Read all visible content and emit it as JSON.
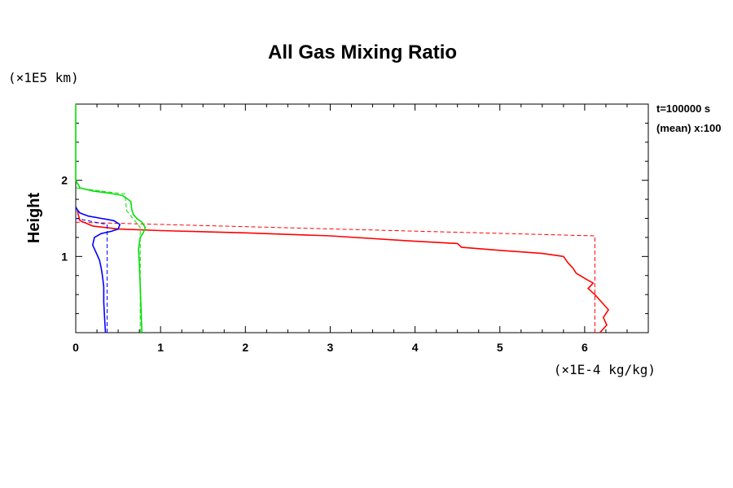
{
  "chart_data": {
    "type": "line",
    "title": "All Gas Mixing Ratio",
    "ylabel": "Height",
    "y_unit": "(×1E5 km)",
    "x_unit": "(×1E-4 kg/kg)",
    "annotations": [
      "t=100000 s",
      "(mean) x:100"
    ],
    "xlim": [
      0,
      6.75
    ],
    "ylim": [
      0,
      3.0
    ],
    "x_ticks": [
      "0",
      "1",
      "2",
      "3",
      "4",
      "5",
      "6"
    ],
    "y_ticks": [
      "1",
      "2"
    ],
    "grid": false,
    "series": [
      {
        "color": "#ff0000",
        "style": "solid",
        "x": [
          6.18,
          6.26,
          6.22,
          6.28,
          6.2,
          6.12,
          6.04,
          6.1,
          6.02,
          5.9,
          5.86,
          5.8,
          5.75,
          5.5,
          5.0,
          4.55,
          4.5,
          4.0,
          3.0,
          2.0,
          1.0,
          0.5,
          0.2,
          0.05,
          0.03,
          0.02
        ],
        "y": [
          0.0,
          0.1,
          0.2,
          0.3,
          0.4,
          0.5,
          0.58,
          0.65,
          0.7,
          0.78,
          0.85,
          0.92,
          1.0,
          1.04,
          1.08,
          1.12,
          1.17,
          1.2,
          1.27,
          1.31,
          1.34,
          1.36,
          1.4,
          1.47,
          1.55,
          1.6
        ]
      },
      {
        "color": "#ff0000",
        "style": "dashed",
        "x": [
          6.12,
          6.12,
          6.12,
          6.12,
          0.0
        ],
        "y": [
          0.0,
          0.5,
          1.0,
          1.27,
          1.45
        ]
      },
      {
        "color": "#0000ff",
        "style": "solid",
        "x": [
          0.35,
          0.34,
          0.33,
          0.33,
          0.32,
          0.31,
          0.3,
          0.28,
          0.24,
          0.2,
          0.22,
          0.3,
          0.42,
          0.5,
          0.52,
          0.45,
          0.3,
          0.15,
          0.05,
          0.02,
          0.0
        ],
        "y": [
          0.0,
          0.2,
          0.4,
          0.6,
          0.7,
          0.78,
          0.85,
          0.95,
          1.05,
          1.15,
          1.25,
          1.3,
          1.33,
          1.36,
          1.42,
          1.47,
          1.5,
          1.53,
          1.57,
          1.61,
          1.65
        ]
      },
      {
        "color": "#0000ff",
        "style": "dashed",
        "x": [
          0.37,
          0.37,
          0.37,
          0.37,
          0.0
        ],
        "y": [
          0.0,
          0.6,
          1.2,
          1.42,
          1.5
        ]
      },
      {
        "color": "#00e000",
        "style": "solid",
        "x": [
          0.78,
          0.77,
          0.76,
          0.75,
          0.74,
          0.76,
          0.8,
          0.82,
          0.78,
          0.72,
          0.68,
          0.66,
          0.65,
          0.58,
          0.55,
          0.4,
          0.2,
          0.05,
          0.0,
          0.0,
          0.0,
          0.0
        ],
        "y": [
          0.0,
          0.3,
          0.6,
          0.9,
          1.1,
          1.25,
          1.32,
          1.38,
          1.45,
          1.5,
          1.55,
          1.62,
          1.72,
          1.78,
          1.8,
          1.83,
          1.86,
          1.9,
          2.0,
          2.2,
          2.6,
          3.0
        ]
      },
      {
        "color": "#00e000",
        "style": "dashed",
        "x": [
          0.76,
          0.76,
          0.76,
          0.76,
          0.6,
          0.58,
          0.0
        ],
        "y": [
          0.0,
          0.6,
          1.2,
          1.38,
          1.6,
          1.82,
          1.9
        ]
      }
    ]
  }
}
